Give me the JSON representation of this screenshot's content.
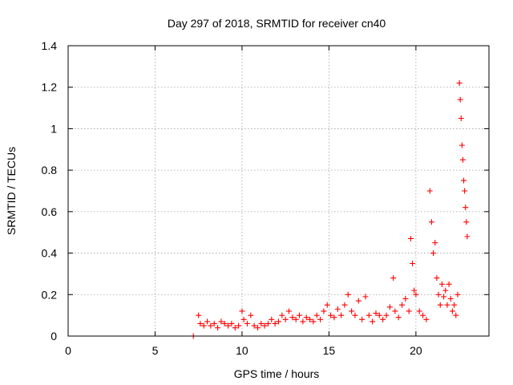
{
  "chart_data": {
    "type": "scatter",
    "title": "Day 297 of 2018, SRMTID for receiver cn40",
    "xlabel": "GPS time / hours",
    "ylabel": "SRMTID / TECUs",
    "xlim": [
      0,
      24.2
    ],
    "ylim": [
      0,
      1.4
    ],
    "xticks": [
      0,
      5,
      10,
      15,
      20
    ],
    "xtick_labels": [
      "0",
      "5",
      "10",
      "15",
      "20"
    ],
    "yticks": [
      0,
      0.2,
      0.4,
      0.6,
      0.8,
      1,
      1.2,
      1.4
    ],
    "ytick_labels": [
      "0",
      "0.2",
      "0.4",
      "0.6",
      "0.8",
      "1",
      "1.2",
      "1.4"
    ],
    "grid": true,
    "marker": "+",
    "series": [
      {
        "name": "SRMTID",
        "color": "#ff0000",
        "points": [
          [
            7.2,
            0.0
          ],
          [
            7.5,
            0.1
          ],
          [
            7.6,
            0.06
          ],
          [
            7.8,
            0.05
          ],
          [
            8.0,
            0.07
          ],
          [
            8.2,
            0.05
          ],
          [
            8.4,
            0.06
          ],
          [
            8.6,
            0.04
          ],
          [
            8.8,
            0.07
          ],
          [
            9.0,
            0.06
          ],
          [
            9.2,
            0.05
          ],
          [
            9.4,
            0.06
          ],
          [
            9.6,
            0.04
          ],
          [
            9.8,
            0.05
          ],
          [
            10.0,
            0.12
          ],
          [
            10.1,
            0.08
          ],
          [
            10.3,
            0.06
          ],
          [
            10.5,
            0.1
          ],
          [
            10.7,
            0.05
          ],
          [
            10.9,
            0.04
          ],
          [
            11.1,
            0.06
          ],
          [
            11.3,
            0.05
          ],
          [
            11.5,
            0.06
          ],
          [
            11.7,
            0.08
          ],
          [
            11.9,
            0.06
          ],
          [
            12.1,
            0.07
          ],
          [
            12.3,
            0.1
          ],
          [
            12.5,
            0.08
          ],
          [
            12.7,
            0.12
          ],
          [
            12.9,
            0.09
          ],
          [
            13.1,
            0.08
          ],
          [
            13.3,
            0.1
          ],
          [
            13.5,
            0.07
          ],
          [
            13.7,
            0.09
          ],
          [
            13.9,
            0.08
          ],
          [
            14.1,
            0.07
          ],
          [
            14.3,
            0.1
          ],
          [
            14.5,
            0.08
          ],
          [
            14.7,
            0.12
          ],
          [
            14.9,
            0.15
          ],
          [
            15.1,
            0.1
          ],
          [
            15.3,
            0.09
          ],
          [
            15.5,
            0.13
          ],
          [
            15.7,
            0.1
          ],
          [
            15.9,
            0.15
          ],
          [
            16.1,
            0.2
          ],
          [
            16.3,
            0.12
          ],
          [
            16.5,
            0.1
          ],
          [
            16.7,
            0.17
          ],
          [
            16.9,
            0.08
          ],
          [
            17.1,
            0.19
          ],
          [
            17.3,
            0.1
          ],
          [
            17.5,
            0.07
          ],
          [
            17.7,
            0.11
          ],
          [
            17.9,
            0.1
          ],
          [
            18.1,
            0.08
          ],
          [
            18.3,
            0.1
          ],
          [
            18.5,
            0.14
          ],
          [
            18.7,
            0.28
          ],
          [
            18.8,
            0.12
          ],
          [
            19.0,
            0.09
          ],
          [
            19.2,
            0.15
          ],
          [
            19.4,
            0.18
          ],
          [
            19.6,
            0.12
          ],
          [
            19.7,
            0.47
          ],
          [
            19.8,
            0.35
          ],
          [
            19.9,
            0.22
          ],
          [
            20.0,
            0.2
          ],
          [
            20.2,
            0.12
          ],
          [
            20.4,
            0.1
          ],
          [
            20.6,
            0.08
          ],
          [
            20.8,
            0.7
          ],
          [
            20.9,
            0.55
          ],
          [
            21.0,
            0.4
          ],
          [
            21.1,
            0.45
          ],
          [
            21.2,
            0.28
          ],
          [
            21.3,
            0.2
          ],
          [
            21.4,
            0.15
          ],
          [
            21.5,
            0.25
          ],
          [
            21.6,
            0.19
          ],
          [
            21.7,
            0.22
          ],
          [
            21.8,
            0.15
          ],
          [
            21.9,
            0.25
          ],
          [
            22.0,
            0.18
          ],
          [
            22.1,
            0.12
          ],
          [
            22.2,
            0.15
          ],
          [
            22.3,
            0.1
          ],
          [
            22.4,
            0.2
          ],
          [
            22.5,
            1.22
          ],
          [
            22.55,
            1.14
          ],
          [
            22.6,
            1.05
          ],
          [
            22.65,
            0.92
          ],
          [
            22.7,
            0.85
          ],
          [
            22.75,
            0.75
          ],
          [
            22.8,
            0.7
          ],
          [
            22.85,
            0.62
          ],
          [
            22.9,
            0.55
          ],
          [
            22.95,
            0.48
          ]
        ]
      }
    ]
  }
}
